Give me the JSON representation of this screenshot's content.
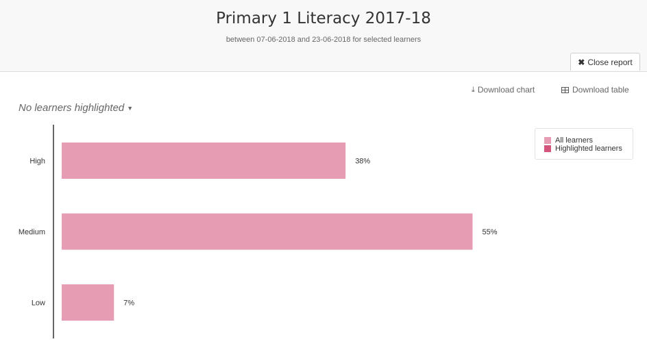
{
  "header": {
    "title": "Primary 1 Literacy 2017-18",
    "subtitle": "between 07-06-2018 and 23-06-2018 for selected learners",
    "close_label": "Close report"
  },
  "toolbar": {
    "download_chart": "Download chart",
    "download_table": "Download table"
  },
  "highlight": {
    "label": "No learners highlighted"
  },
  "legend": [
    {
      "label": "All learners",
      "color": "#e69db3"
    },
    {
      "label": "Highlighted learners",
      "color": "#d4557c"
    }
  ],
  "colors": {
    "bar": "#e69db3",
    "axis": "#333333"
  },
  "chart_data": {
    "type": "bar",
    "orientation": "horizontal",
    "categories": [
      "High",
      "Medium",
      "Low"
    ],
    "series": [
      {
        "name": "All learners",
        "values": [
          38,
          55,
          7
        ]
      }
    ],
    "data_labels": [
      "38%",
      "55%",
      "7%"
    ],
    "legend_position": "top-right",
    "grid": false
  }
}
